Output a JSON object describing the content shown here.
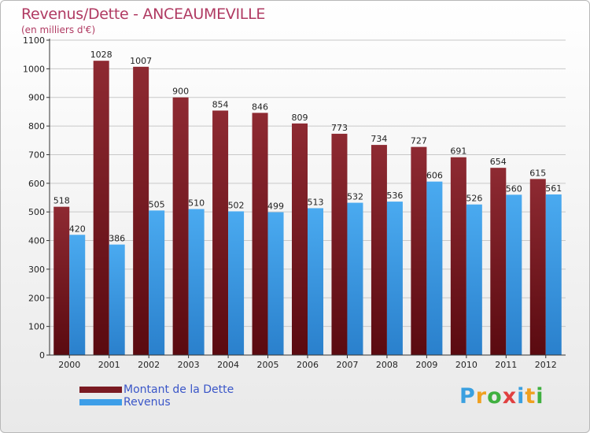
{
  "title": "Revenus/Dette - ANCEAUMEVILLE",
  "subtitle": "(en milliers d'€)",
  "logo": {
    "text": "Proxiti",
    "letters": [
      "P",
      "r",
      "o",
      "x",
      "i",
      "t",
      "i"
    ],
    "colors": [
      "#3aa0e0",
      "#f0a020",
      "#40b040",
      "#e04040",
      "#3aa0e0",
      "#f0a020",
      "#40b040"
    ]
  },
  "colors": {
    "debt": "#7a1a22",
    "revenue": "#3d9ee8"
  },
  "chart_data": {
    "type": "bar",
    "title": "Revenus/Dette - ANCEAUMEVILLE",
    "ylabel": "(en milliers d'€)",
    "categories": [
      "2000",
      "2001",
      "2002",
      "2003",
      "2004",
      "2005",
      "2006",
      "2007",
      "2008",
      "2009",
      "2010",
      "2011",
      "2012"
    ],
    "series": [
      {
        "name": "Montant de la Dette",
        "values": [
          518,
          1028,
          1007,
          900,
          854,
          846,
          809,
          773,
          734,
          727,
          691,
          654,
          615
        ]
      },
      {
        "name": "Revenus",
        "values": [
          420,
          386,
          505,
          510,
          502,
          499,
          513,
          532,
          536,
          606,
          526,
          560,
          561
        ]
      }
    ],
    "ylim": [
      0,
      1100
    ],
    "yticks": [
      0,
      100,
      200,
      300,
      400,
      500,
      600,
      700,
      800,
      900,
      1000,
      1100
    ],
    "grid": true,
    "legend": "bottom-left"
  }
}
